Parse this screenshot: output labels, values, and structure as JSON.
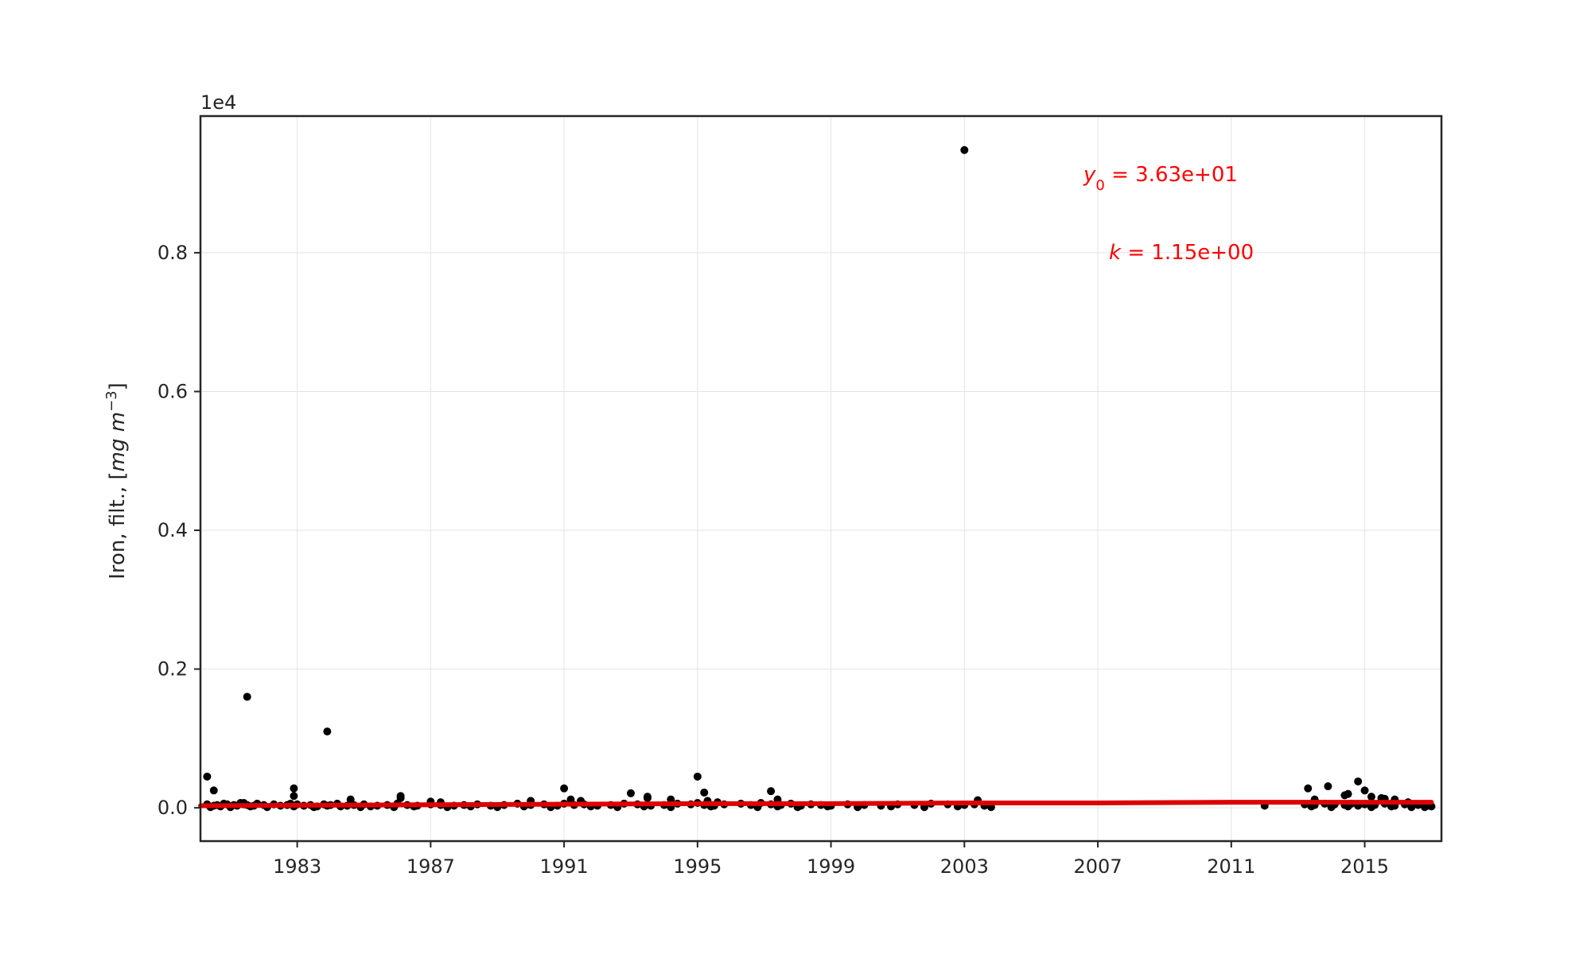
{
  "chart_data": {
    "type": "scatter",
    "title": "",
    "ylabel": "Iron, filt., [mg m−3]",
    "ylabel_parts": {
      "text": "Iron, filt., [",
      "unit": "mg m",
      "exp": "−3",
      "close": "]"
    },
    "y_scale_note": "1e4",
    "xlim": [
      1980.1,
      2017.3
    ],
    "ylim": [
      -0.048,
      0.997
    ],
    "x_ticks": [
      1983,
      1987,
      1991,
      1995,
      1999,
      2003,
      2007,
      2011,
      2015
    ],
    "x_tick_labels": [
      "1983",
      "1987",
      "1991",
      "1995",
      "1999",
      "2003",
      "2007",
      "2011",
      "2015"
    ],
    "y_ticks": [
      0.0,
      0.2,
      0.4,
      0.6,
      0.8
    ],
    "y_tick_labels": [
      "0.0",
      "0.2",
      "0.4",
      "0.6",
      "0.8"
    ],
    "grid": true,
    "annotations": {
      "y0": {
        "symbol": "y",
        "subscript": "0",
        "value": " = 3.63e+01"
      },
      "k": {
        "symbol": "k",
        "value": " = 1.15e+00"
      }
    },
    "colors": {
      "points": "#000000",
      "trend": "#dd0000",
      "annotation": "#ff0000"
    },
    "series": [
      {
        "kind": "points",
        "x": [
          1980.3,
          1980.5,
          1980.6,
          1980.8,
          1980.9,
          1981.1,
          1981.2,
          1981.3,
          1981.4,
          1981.5,
          1981.7,
          1981.8,
          1982.0,
          1982.3,
          1982.5,
          1982.7,
          1982.8,
          1983.0,
          1983.2,
          1983.4,
          1983.6,
          1983.8,
          1983.9,
          1984.0,
          1984.2,
          1984.5,
          1984.7,
          1985.0,
          1985.4,
          1985.7,
          1986.0,
          1986.3,
          1986.6,
          1987.0,
          1987.3,
          1987.7,
          1988.0,
          1988.4,
          1988.8,
          1989.2,
          1989.6,
          1990.0,
          1990.4,
          1990.8,
          1991.0,
          1991.3,
          1991.6,
          1992.0,
          1992.4,
          1992.8,
          1993.2,
          1993.6,
          1994.0,
          1994.4,
          1994.8,
          1995.0,
          1995.2,
          1995.5,
          1995.8,
          1996.3,
          1996.6,
          1996.9,
          1997.2,
          1997.5,
          1997.8,
          1998.1,
          1998.4,
          1998.7,
          1999.0,
          1999.5,
          2000.0,
          2000.5,
          2001.0,
          2001.5,
          2002.0,
          2002.5,
          2003.0,
          2003.3,
          2003.6,
          2012.0,
          2013.2,
          2013.5,
          2013.8,
          2014.1,
          2014.4,
          2014.6,
          2014.8,
          2015.0,
          2015.3,
          2015.6,
          2015.9,
          2016.2,
          2016.6,
          2016.9,
          2017.0,
          1980.4,
          1980.7,
          1981.0,
          1981.6,
          1982.1,
          1982.9,
          1983.5,
          1984.3,
          1984.9,
          1985.2,
          1985.9,
          1986.5,
          1987.5,
          1988.2,
          1989.0,
          1989.8,
          1990.6,
          1991.8,
          1992.6,
          1993.4,
          1994.2,
          1995.4,
          1996.8,
          1997.4,
          1998.0,
          1998.9,
          1999.8,
          2000.8,
          2001.8,
          2002.8,
          2003.8,
          2013.4,
          2014.0,
          2014.5,
          2015.2,
          2015.8,
          2016.4,
          2016.8,
          1980.3,
          1980.5,
          1981.5,
          1981.4,
          1982.9,
          1982.9,
          1983.9,
          1984.6,
          1986.1,
          1986.1,
          1987.0,
          1987.3,
          1990.0,
          1991.0,
          1991.5,
          1991.2,
          1993.0,
          1993.5,
          1993.5,
          1994.2,
          1995.0,
          1995.2,
          1995.3,
          1995.6,
          1997.2,
          1997.4,
          2003.0,
          2003.4,
          2013.3,
          2013.5,
          2013.9,
          2014.4,
          2014.5,
          2014.8,
          2015.0,
          2015.2,
          2015.5,
          2015.6,
          2015.9,
          2016.3
        ],
        "y": [
          0.005,
          0.003,
          0.004,
          0.006,
          0.005,
          0.004,
          0.003,
          0.007,
          0.005,
          0.004,
          0.003,
          0.006,
          0.004,
          0.005,
          0.003,
          0.004,
          0.006,
          0.005,
          0.003,
          0.004,
          0.002,
          0.005,
          0.003,
          0.004,
          0.006,
          0.003,
          0.004,
          0.005,
          0.003,
          0.004,
          0.006,
          0.004,
          0.003,
          0.005,
          0.004,
          0.003,
          0.004,
          0.005,
          0.003,
          0.004,
          0.006,
          0.004,
          0.005,
          0.003,
          0.006,
          0.004,
          0.005,
          0.003,
          0.004,
          0.006,
          0.005,
          0.003,
          0.004,
          0.006,
          0.005,
          0.007,
          0.004,
          0.003,
          0.005,
          0.006,
          0.004,
          0.007,
          0.005,
          0.004,
          0.006,
          0.003,
          0.005,
          0.004,
          0.003,
          0.005,
          0.004,
          0.003,
          0.005,
          0.004,
          0.006,
          0.005,
          0.004,
          0.005,
          0.003,
          0.003,
          0.005,
          0.004,
          0.006,
          0.005,
          0.004,
          0.006,
          0.003,
          0.005,
          0.004,
          0.006,
          0.003,
          0.005,
          0.004,
          0.003,
          0.002,
          0.001,
          0.002,
          0.001,
          0.002,
          0.001,
          0.002,
          0.001,
          0.002,
          0.001,
          0.002,
          0.001,
          0.002,
          0.001,
          0.002,
          0.001,
          0.002,
          0.001,
          0.002,
          0.001,
          0.002,
          0.001,
          0.002,
          0.001,
          0.002,
          0.001,
          0.002,
          0.001,
          0.002,
          0.001,
          0.002,
          0.001,
          0.002,
          0.001,
          0.002,
          0.001,
          0.002,
          0.001,
          0.001,
          0.045,
          0.025,
          0.16,
          0.007,
          0.028,
          0.017,
          0.11,
          0.012,
          0.017,
          0.014,
          0.009,
          0.008,
          0.01,
          0.028,
          0.01,
          0.012,
          0.021,
          0.016,
          0.014,
          0.012,
          0.045,
          0.022,
          0.01,
          0.008,
          0.024,
          0.012,
          0.948,
          0.011,
          0.028,
          0.012,
          0.031,
          0.018,
          0.02,
          0.038,
          0.025,
          0.016,
          0.014,
          0.013,
          0.012,
          0.008
        ]
      },
      {
        "kind": "trend",
        "x": [
          1980.1,
          1985,
          1990,
          1995,
          1999,
          2003,
          2007,
          2011,
          2015,
          2017.0
        ],
        "y": [
          0.003,
          0.004,
          0.005,
          0.006,
          0.006,
          0.007,
          0.007,
          0.008,
          0.008,
          0.008
        ]
      }
    ]
  }
}
